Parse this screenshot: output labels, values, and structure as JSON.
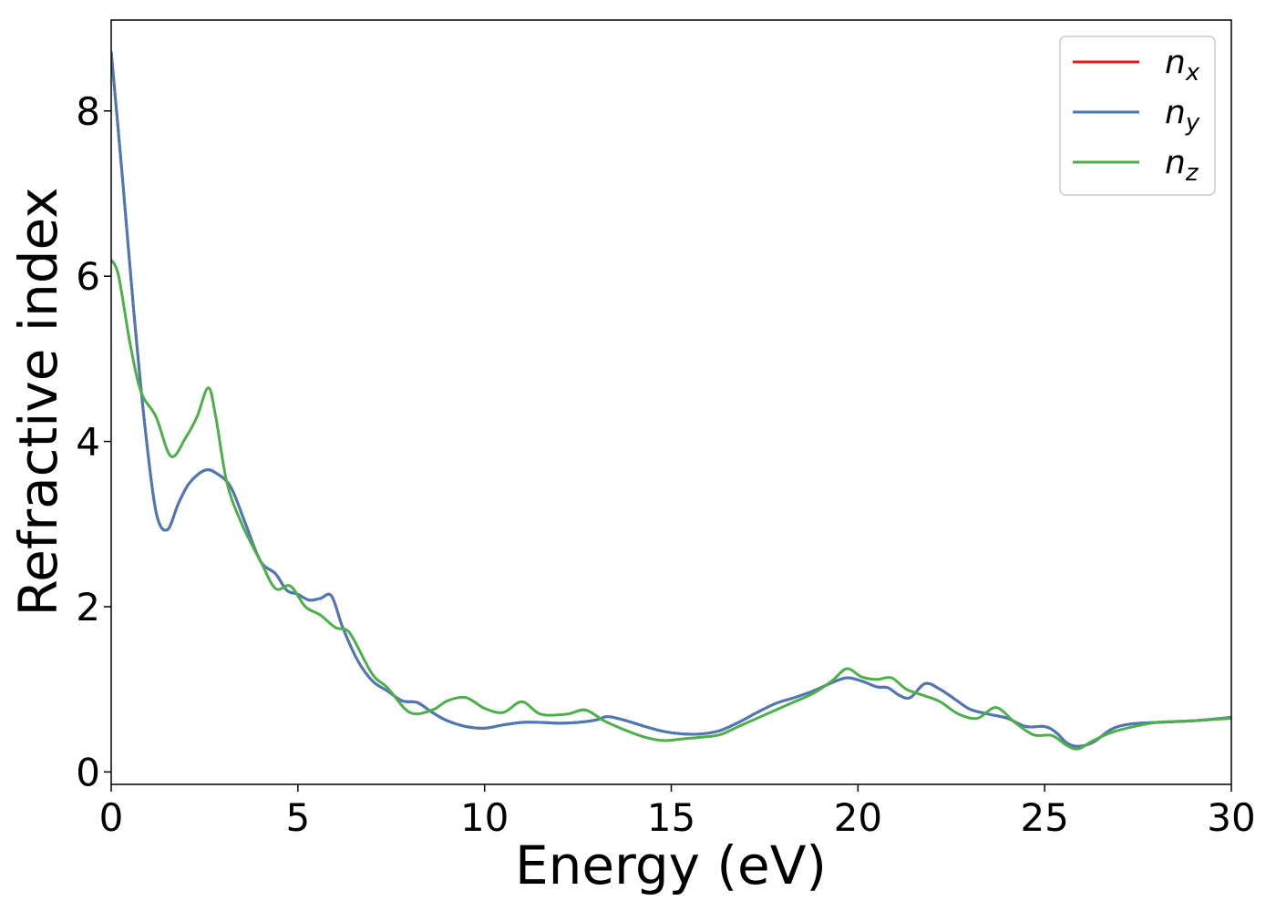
{
  "chart_data": {
    "type": "line",
    "xlabel": "Energy (eV)",
    "ylabel": "Refractive index",
    "xlim": [
      0,
      30
    ],
    "ylim": [
      -0.15,
      9.1
    ],
    "xticks": [
      0,
      5,
      10,
      15,
      20,
      25,
      30
    ],
    "yticks": [
      0,
      2,
      4,
      6,
      8
    ],
    "xtick_labels": [
      "0",
      "5",
      "10",
      "15",
      "20",
      "25",
      "30"
    ],
    "ytick_labels": [
      "0",
      "2",
      "4",
      "6",
      "8"
    ],
    "grid": false,
    "legend_position": "top-right",
    "series": [
      {
        "name": "n",
        "subscript": "x",
        "color": "#e41a1c",
        "x": [
          0,
          0.3,
          0.6,
          0.9,
          1.2,
          1.5,
          1.8,
          2.1,
          2.5,
          2.8,
          3.2,
          3.6,
          4.0,
          4.4,
          4.7,
          5.0,
          5.3,
          5.6,
          5.9,
          6.2,
          6.6,
          7.0,
          7.4,
          7.8,
          8.2,
          8.6,
          9.0,
          9.5,
          10.0,
          10.5,
          11.0,
          11.5,
          12.0,
          12.5,
          13.0,
          13.3,
          13.8,
          14.3,
          14.8,
          15.3,
          15.8,
          16.3,
          16.8,
          17.3,
          17.8,
          18.3,
          18.8,
          19.3,
          19.7,
          20.1,
          20.5,
          20.8,
          21.1,
          21.4,
          21.8,
          22.2,
          22.6,
          23.0,
          23.5,
          24.0,
          24.5,
          25.0,
          25.3,
          25.6,
          25.9,
          26.3,
          26.8,
          27.3,
          28.0,
          29.0,
          30.0
        ],
        "y": [
          8.72,
          7.2,
          5.6,
          4.2,
          3.15,
          2.93,
          3.25,
          3.5,
          3.65,
          3.62,
          3.45,
          3.0,
          2.55,
          2.4,
          2.2,
          2.15,
          2.08,
          2.1,
          2.13,
          1.75,
          1.35,
          1.1,
          0.98,
          0.86,
          0.84,
          0.72,
          0.62,
          0.55,
          0.53,
          0.57,
          0.6,
          0.6,
          0.59,
          0.6,
          0.63,
          0.67,
          0.62,
          0.55,
          0.49,
          0.46,
          0.46,
          0.5,
          0.6,
          0.72,
          0.83,
          0.9,
          0.98,
          1.08,
          1.14,
          1.1,
          1.03,
          1.02,
          0.93,
          0.9,
          1.07,
          1.0,
          0.88,
          0.76,
          0.7,
          0.65,
          0.55,
          0.55,
          0.48,
          0.35,
          0.31,
          0.36,
          0.52,
          0.58,
          0.6,
          0.62,
          0.66
        ]
      },
      {
        "name": "n",
        "subscript": "y",
        "color": "#4a7ab5",
        "x": [
          0,
          0.3,
          0.6,
          0.9,
          1.2,
          1.5,
          1.8,
          2.1,
          2.5,
          2.8,
          3.2,
          3.6,
          4.0,
          4.4,
          4.7,
          5.0,
          5.3,
          5.6,
          5.9,
          6.2,
          6.6,
          7.0,
          7.4,
          7.8,
          8.2,
          8.6,
          9.0,
          9.5,
          10.0,
          10.5,
          11.0,
          11.5,
          12.0,
          12.5,
          13.0,
          13.3,
          13.8,
          14.3,
          14.8,
          15.3,
          15.8,
          16.3,
          16.8,
          17.3,
          17.8,
          18.3,
          18.8,
          19.3,
          19.7,
          20.1,
          20.5,
          20.8,
          21.1,
          21.4,
          21.8,
          22.2,
          22.6,
          23.0,
          23.5,
          24.0,
          24.5,
          25.0,
          25.3,
          25.6,
          25.9,
          26.3,
          26.8,
          27.3,
          28.0,
          29.0,
          30.0
        ],
        "y": [
          8.72,
          7.2,
          5.6,
          4.2,
          3.15,
          2.93,
          3.25,
          3.5,
          3.65,
          3.62,
          3.45,
          3.0,
          2.55,
          2.4,
          2.2,
          2.15,
          2.08,
          2.1,
          2.13,
          1.75,
          1.35,
          1.1,
          0.98,
          0.86,
          0.84,
          0.72,
          0.62,
          0.55,
          0.53,
          0.57,
          0.6,
          0.6,
          0.59,
          0.6,
          0.63,
          0.67,
          0.62,
          0.55,
          0.49,
          0.46,
          0.46,
          0.5,
          0.6,
          0.72,
          0.83,
          0.9,
          0.98,
          1.08,
          1.14,
          1.1,
          1.03,
          1.02,
          0.93,
          0.9,
          1.07,
          1.0,
          0.88,
          0.76,
          0.7,
          0.65,
          0.55,
          0.55,
          0.48,
          0.35,
          0.31,
          0.36,
          0.52,
          0.58,
          0.6,
          0.62,
          0.66
        ]
      },
      {
        "name": "n",
        "subscript": "z",
        "color": "#4daf4a",
        "x": [
          0,
          0.2,
          0.5,
          0.8,
          1.2,
          1.6,
          2.0,
          2.3,
          2.6,
          2.8,
          3.1,
          3.5,
          4.0,
          4.4,
          4.8,
          5.2,
          5.6,
          6.0,
          6.3,
          6.5,
          7.0,
          7.4,
          8.0,
          8.6,
          9.0,
          9.5,
          10.0,
          10.5,
          11.0,
          11.5,
          12.2,
          12.7,
          13.2,
          13.8,
          14.3,
          14.8,
          15.3,
          15.8,
          16.3,
          16.8,
          17.3,
          17.8,
          18.3,
          18.8,
          19.3,
          19.7,
          20.1,
          20.5,
          20.9,
          21.3,
          21.8,
          22.2,
          22.7,
          23.2,
          23.7,
          24.2,
          24.7,
          25.2,
          25.6,
          25.9,
          26.3,
          26.8,
          27.3,
          28.0,
          29.0,
          30.0
        ],
        "y": [
          6.2,
          6.0,
          5.2,
          4.6,
          4.3,
          3.82,
          4.05,
          4.3,
          4.65,
          4.3,
          3.5,
          3.0,
          2.55,
          2.22,
          2.25,
          2.0,
          1.9,
          1.75,
          1.72,
          1.6,
          1.18,
          1.02,
          0.72,
          0.75,
          0.86,
          0.9,
          0.77,
          0.72,
          0.85,
          0.7,
          0.7,
          0.75,
          0.62,
          0.5,
          0.42,
          0.38,
          0.4,
          0.42,
          0.45,
          0.55,
          0.65,
          0.75,
          0.85,
          0.95,
          1.1,
          1.25,
          1.15,
          1.12,
          1.14,
          1.0,
          0.92,
          0.85,
          0.7,
          0.65,
          0.78,
          0.6,
          0.45,
          0.44,
          0.32,
          0.28,
          0.38,
          0.48,
          0.54,
          0.6,
          0.62,
          0.65
        ]
      }
    ]
  }
}
